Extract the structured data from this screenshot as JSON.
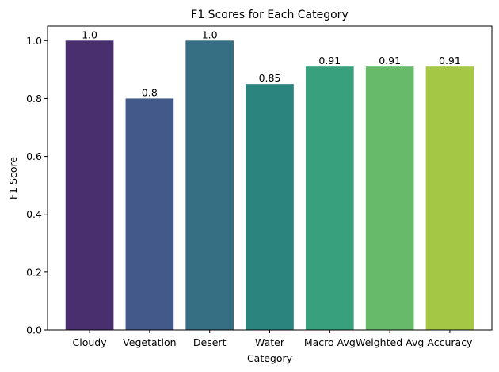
{
  "chart_data": {
    "type": "bar",
    "title": "F1 Scores for Each Category",
    "xlabel": "Category",
    "ylabel": "F1 Score",
    "categories": [
      "Cloudy",
      "Vegetation",
      "Desert",
      "Water",
      "Macro Avg",
      "Weighted Avg",
      "Accuracy"
    ],
    "values": [
      1.0,
      0.8,
      1.0,
      0.85,
      0.91,
      0.91,
      0.91
    ],
    "data_labels": [
      "1.0",
      "0.8",
      "1.0",
      "0.85",
      "0.91",
      "0.91",
      "0.91"
    ],
    "colors": [
      "#4a2f6f",
      "#43598a",
      "#366f83",
      "#2c847e",
      "#39a07e",
      "#67ba6a",
      "#a4c846"
    ],
    "ylim": [
      0,
      1.05
    ],
    "yticks": [
      0.0,
      0.2,
      0.4,
      0.6,
      0.8,
      1.0
    ],
    "ytick_labels": [
      "0.0",
      "0.2",
      "0.4",
      "0.6",
      "0.8",
      "1.0"
    ],
    "grid": false,
    "legend": "none"
  }
}
